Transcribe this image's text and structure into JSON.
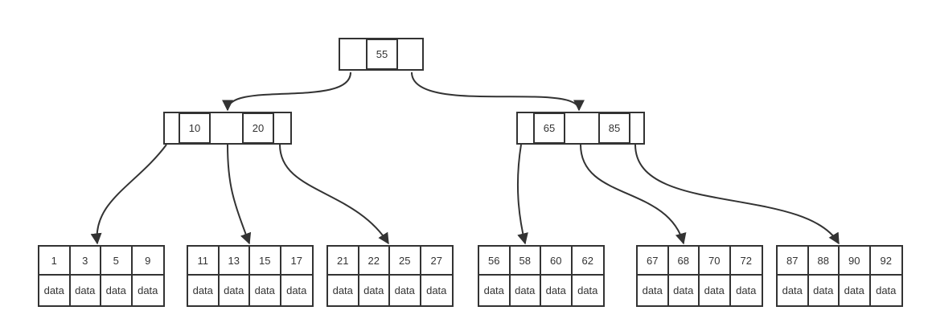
{
  "diagram": {
    "root": {
      "keys": [
        "55"
      ]
    },
    "internal": [
      {
        "keys": [
          "10",
          "20"
        ]
      },
      {
        "keys": [
          "65",
          "85"
        ]
      }
    ],
    "leaves": [
      {
        "keys": [
          "1",
          "3",
          "5",
          "9"
        ],
        "data": [
          "data",
          "data",
          "data",
          "data"
        ]
      },
      {
        "keys": [
          "11",
          "13",
          "15",
          "17"
        ],
        "data": [
          "data",
          "data",
          "data",
          "data"
        ]
      },
      {
        "keys": [
          "21",
          "22",
          "25",
          "27"
        ],
        "data": [
          "data",
          "data",
          "data",
          "data"
        ]
      },
      {
        "keys": [
          "56",
          "58",
          "60",
          "62"
        ],
        "data": [
          "data",
          "data",
          "data",
          "data"
        ]
      },
      {
        "keys": [
          "67",
          "68",
          "70",
          "72"
        ],
        "data": [
          "data",
          "data",
          "data",
          "data"
        ]
      },
      {
        "keys": [
          "87",
          "88",
          "90",
          "92"
        ],
        "data": [
          "data",
          "data",
          "data",
          "data"
        ]
      }
    ],
    "colors": {
      "stroke": "#333333",
      "background": "#ffffff"
    }
  }
}
